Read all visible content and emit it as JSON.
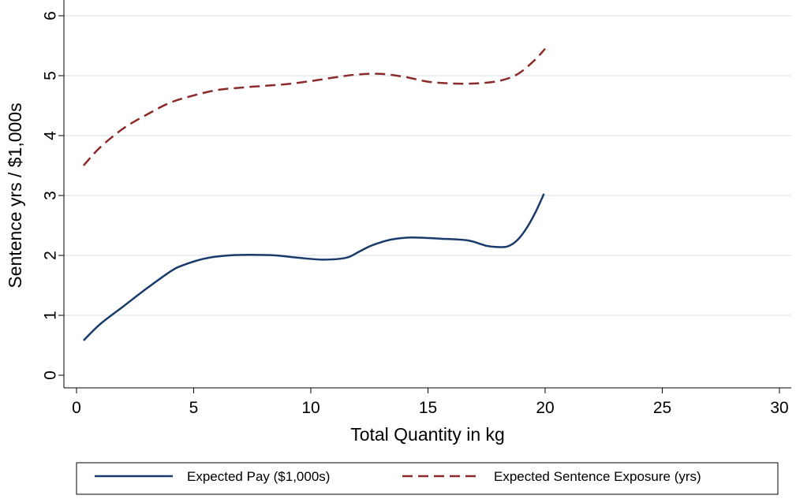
{
  "chart_data": {
    "type": "line",
    "title": "",
    "xlabel": "Total Quantity in kg",
    "ylabel": "Sentence yrs / $1,000s",
    "xlim": [
      0,
      30
    ],
    "ylim": [
      0,
      6
    ],
    "xticks": [
      0,
      5,
      10,
      15,
      20,
      25,
      30
    ],
    "yticks": [
      0,
      1,
      2,
      3,
      4,
      5,
      6
    ],
    "grid": "horizontal",
    "legend_position": "bottom",
    "series": [
      {
        "name": "Expected Pay ($1,000s)",
        "color": "#1a3a6b",
        "style": "solid",
        "points": [
          [
            0.3,
            0.58
          ],
          [
            1.0,
            0.85
          ],
          [
            2.0,
            1.15
          ],
          [
            3.0,
            1.45
          ],
          [
            4.0,
            1.73
          ],
          [
            4.5,
            1.83
          ],
          [
            5.5,
            1.95
          ],
          [
            6.5,
            2.0
          ],
          [
            7.5,
            2.01
          ],
          [
            8.5,
            2.0
          ],
          [
            9.5,
            1.96
          ],
          [
            10.5,
            1.93
          ],
          [
            11.5,
            1.96
          ],
          [
            12.0,
            2.05
          ],
          [
            12.5,
            2.15
          ],
          [
            13.0,
            2.22
          ],
          [
            13.5,
            2.27
          ],
          [
            14.3,
            2.3
          ],
          [
            15.5,
            2.28
          ],
          [
            16.7,
            2.25
          ],
          [
            17.5,
            2.16
          ],
          [
            18.0,
            2.14
          ],
          [
            18.4,
            2.15
          ],
          [
            18.8,
            2.25
          ],
          [
            19.2,
            2.45
          ],
          [
            19.6,
            2.73
          ],
          [
            19.95,
            3.03
          ]
        ]
      },
      {
        "name": "Expected Sentence Exposure (yrs)",
        "color": "#8b2a2a",
        "style": "dashed",
        "points": [
          [
            0.3,
            3.5
          ],
          [
            1.0,
            3.8
          ],
          [
            2.0,
            4.12
          ],
          [
            3.0,
            4.35
          ],
          [
            4.0,
            4.55
          ],
          [
            5.0,
            4.67
          ],
          [
            6.0,
            4.76
          ],
          [
            7.0,
            4.8
          ],
          [
            8.0,
            4.83
          ],
          [
            9.0,
            4.86
          ],
          [
            10.0,
            4.91
          ],
          [
            11.0,
            4.97
          ],
          [
            12.0,
            5.02
          ],
          [
            13.0,
            5.03
          ],
          [
            14.0,
            4.98
          ],
          [
            15.0,
            4.9
          ],
          [
            16.0,
            4.87
          ],
          [
            17.0,
            4.87
          ],
          [
            18.0,
            4.91
          ],
          [
            18.8,
            5.02
          ],
          [
            19.5,
            5.24
          ],
          [
            20.0,
            5.45
          ]
        ]
      }
    ]
  }
}
